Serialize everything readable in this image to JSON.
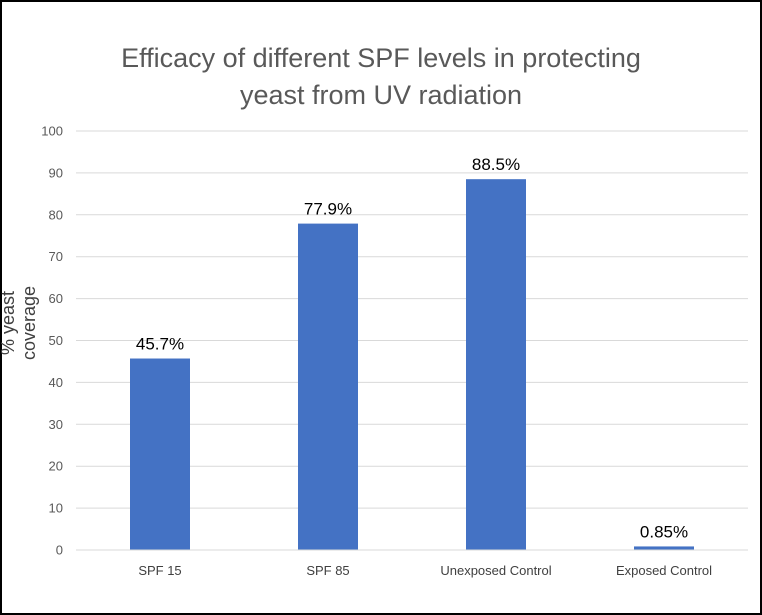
{
  "chart_data": {
    "type": "bar",
    "title": "Efficacy of different SPF levels in protecting\nyeast from UV radiation",
    "ylabel": "% yeast coverage",
    "xlabel": "",
    "categories": [
      "SPF 15",
      "SPF 85",
      "Unexposed Control",
      "Exposed Control"
    ],
    "values": [
      45.7,
      77.9,
      88.5,
      0.85
    ],
    "data_labels": [
      "45.7%",
      "77.9%",
      "88.5%",
      "0.85%"
    ],
    "ylim": [
      0,
      100
    ],
    "yticks": [
      "0",
      "10",
      "20",
      "30",
      "40",
      "50",
      "60",
      "70",
      "80",
      "90",
      "100"
    ],
    "grid": true,
    "legend": "none",
    "bar_color": "#4472c4",
    "grid_color": "#d9d9d9"
  }
}
